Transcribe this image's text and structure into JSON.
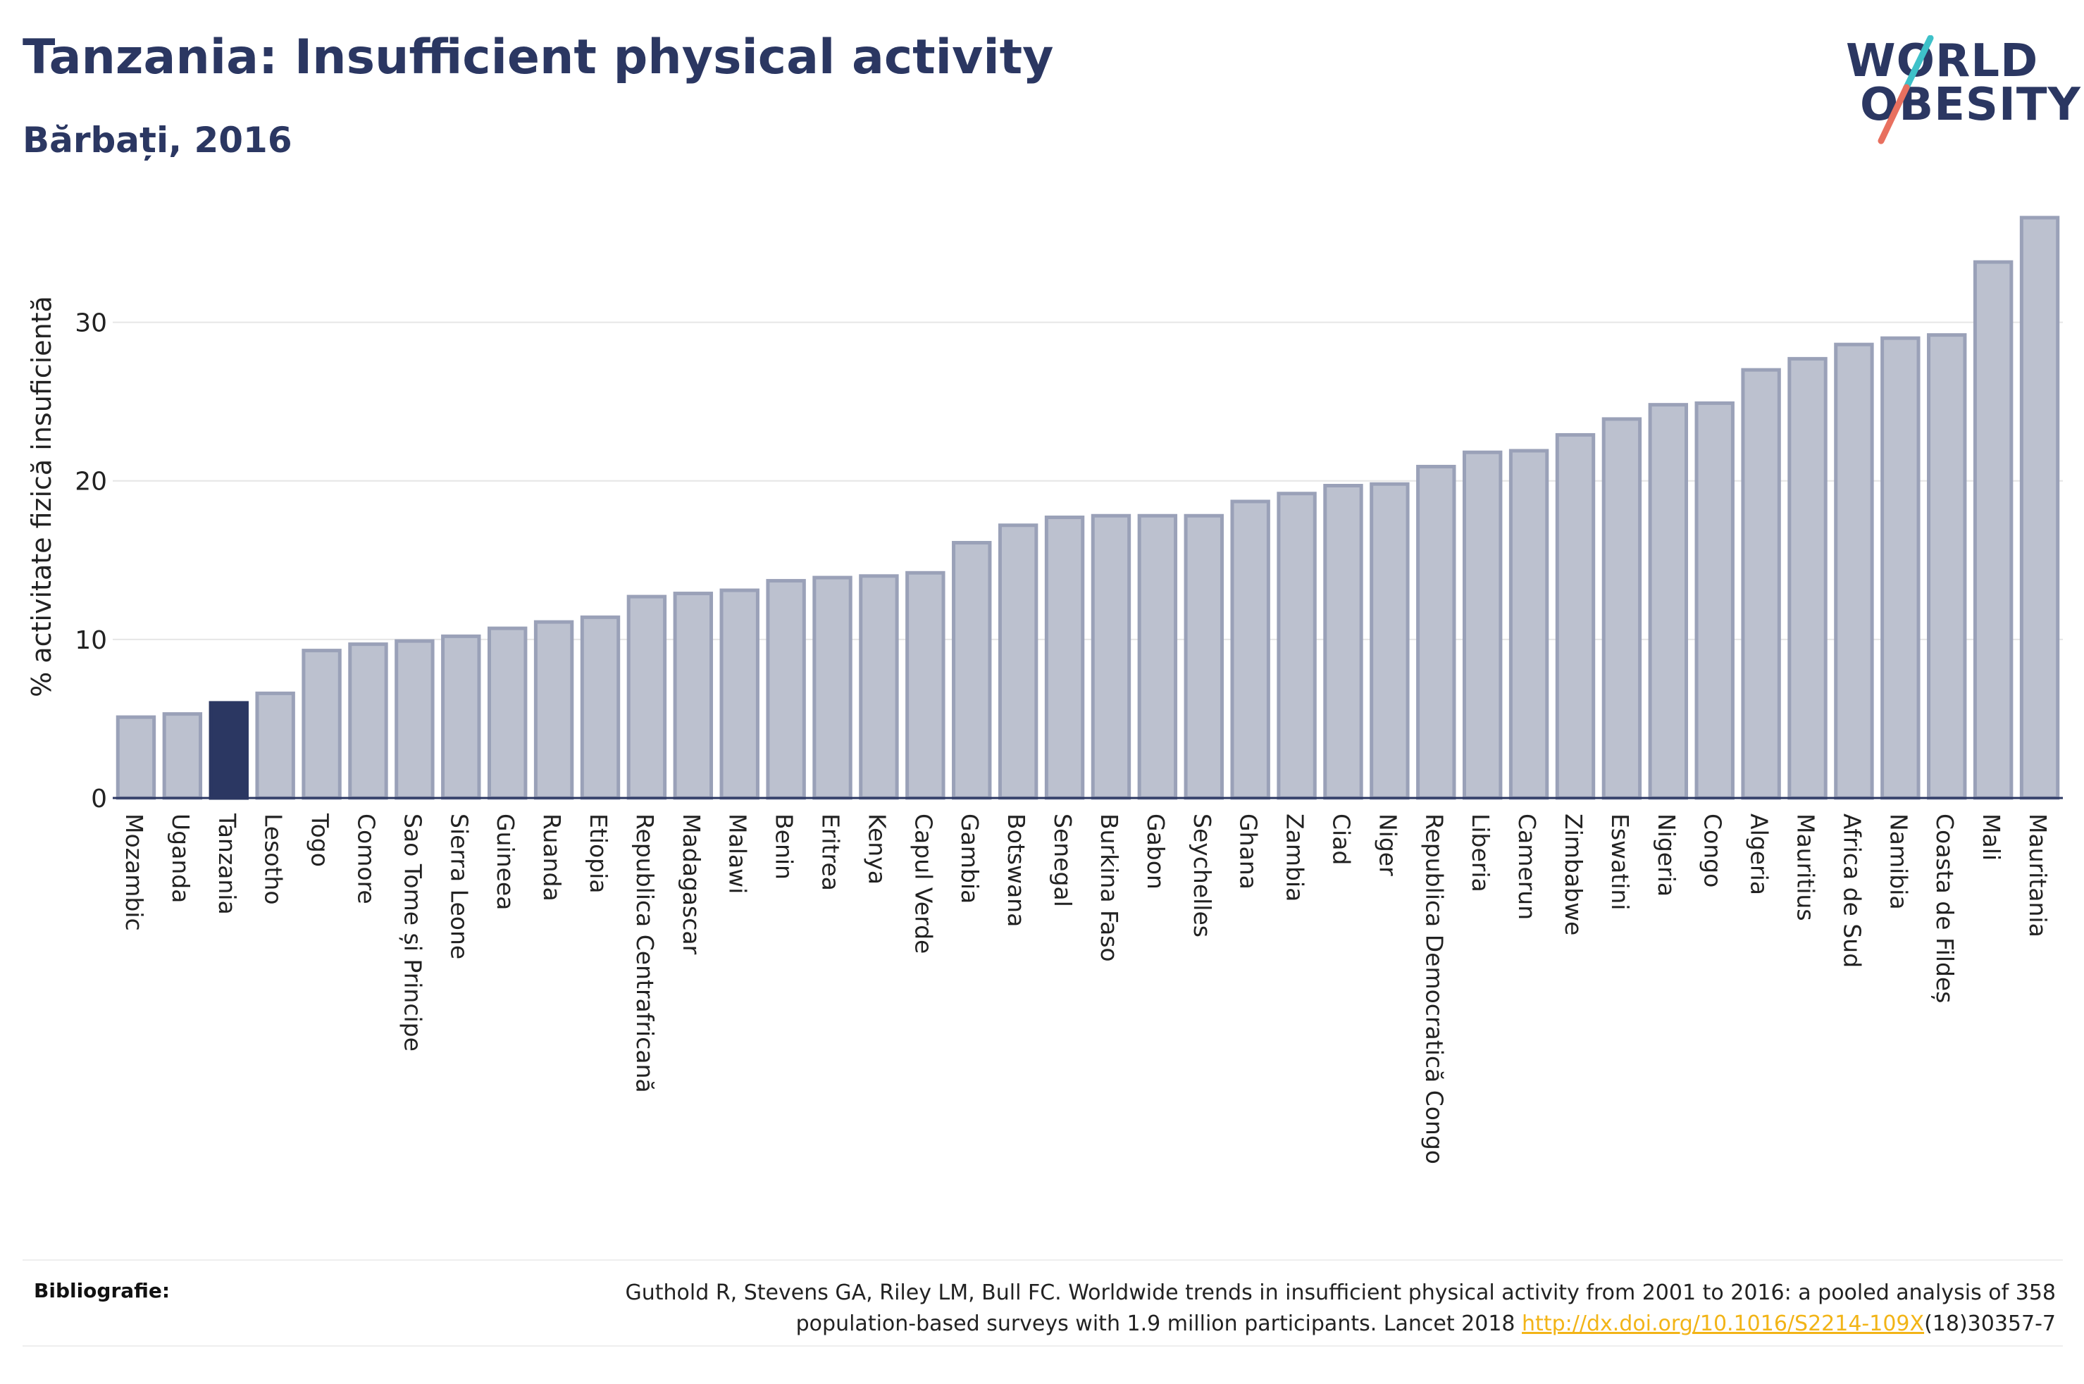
{
  "header": {
    "title": "Tanzania: Insufficient physical activity",
    "subtitle": "Bărbați, 2016"
  },
  "logo": {
    "line1": "WORLD",
    "line2": "OBESITY",
    "accent_colors": [
      "#3ec1c9",
      "#e8705f"
    ]
  },
  "footer": {
    "label": "Bibliografie:",
    "text_before_link": "Guthold R, Stevens GA, Riley LM, Bull FC. Worldwide trends in insufficient physical activity from 2001 to 2016: a pooled analysis of 358 population-based surveys with 1.9 million participants. Lancet 2018 ",
    "link_text": "http://dx.doi.org/10.1016/S2214-109X",
    "text_after_link": "(18)30357-7"
  },
  "colors": {
    "bar": "#bcc1cf",
    "bar_border": "#9aa1b8",
    "highlight": "#2b3762",
    "grid": "#e6e6e6",
    "axis": "#2b3762"
  },
  "chart_data": {
    "type": "bar",
    "ylabel": "% activitate fizică insuficientă",
    "ylim": [
      0,
      37
    ],
    "yticks": [
      0,
      10,
      20,
      30
    ],
    "grid": true,
    "highlight": "Tanzania",
    "categories": [
      "Mozambic",
      "Uganda",
      "Tanzania",
      "Lesotho",
      "Togo",
      "Comore",
      "Sao Tome și Principe",
      "Sierra Leone",
      "Guineea",
      "Ruanda",
      "Etiopia",
      "Republica Centrafricană",
      "Madagascar",
      "Malawi",
      "Benin",
      "Eritrea",
      "Kenya",
      "Capul Verde",
      "Gambia",
      "Botswana",
      "Senegal",
      "Burkina Faso",
      "Gabon",
      "Seychelles",
      "Ghana",
      "Zambia",
      "Ciad",
      "Niger",
      "Republica Democratică Congo",
      "Liberia",
      "Camerun",
      "Zimbabwe",
      "Eswatini",
      "Nigeria",
      "Congo",
      "Algeria",
      "Mauritius",
      "Africa de Sud",
      "Namibia",
      "Coasta de Fildeș",
      "Mali",
      "Mauritania"
    ],
    "values": [
      5.1,
      5.3,
      6.0,
      6.6,
      9.3,
      9.7,
      9.9,
      10.2,
      10.7,
      11.1,
      11.4,
      12.7,
      12.9,
      13.1,
      13.7,
      13.9,
      14.0,
      14.2,
      16.1,
      17.2,
      17.7,
      17.8,
      17.8,
      17.8,
      18.7,
      19.2,
      19.7,
      19.8,
      20.9,
      21.8,
      21.9,
      22.9,
      23.9,
      24.8,
      24.9,
      27.0,
      27.7,
      28.6,
      29.0,
      29.2,
      33.8,
      36.6
    ]
  }
}
